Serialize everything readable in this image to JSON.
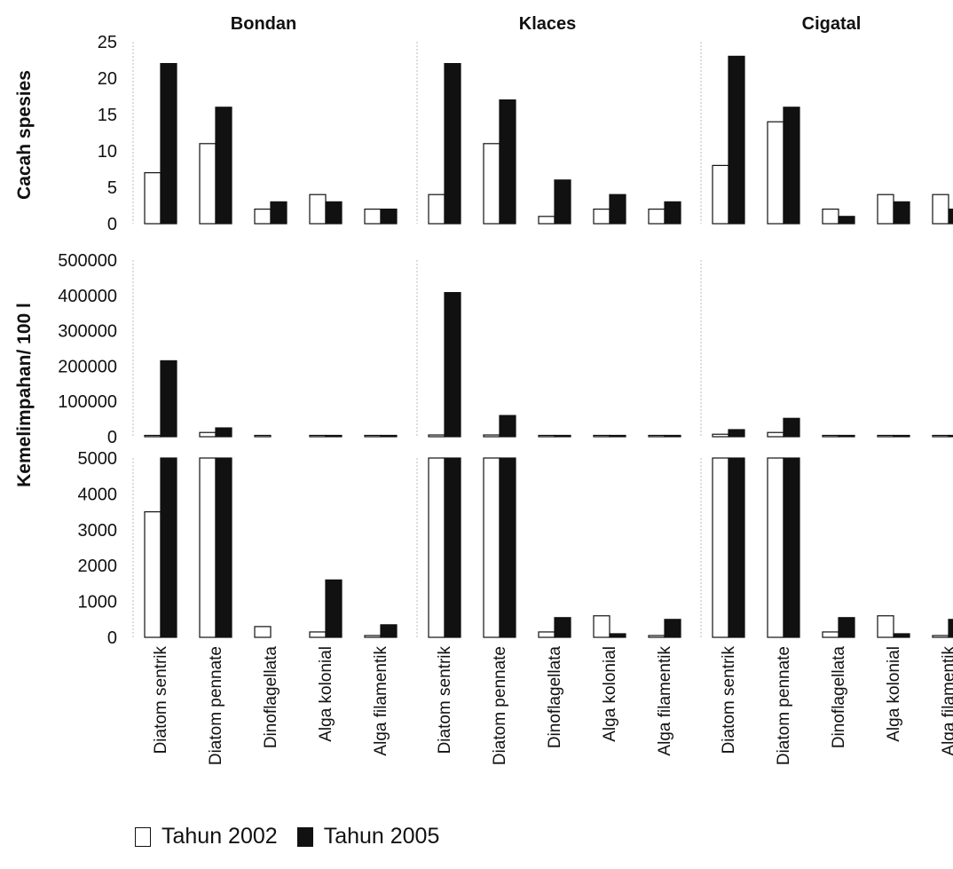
{
  "chart_data": {
    "type": "bar",
    "facets": [
      "Bondan",
      "Klaces",
      "Cigatal"
    ],
    "categories": [
      "Diatom sentrik",
      "Diatom pennate",
      "Dinoflagellata",
      "Alga kolonial",
      "Alga filamentik"
    ],
    "legend": [
      "Tahun 2002",
      "Tahun 2005"
    ],
    "colors": {
      "Tahun 2002": "#ffffff",
      "Tahun 2005": "#111111"
    },
    "panels": [
      {
        "ylabel": "Cacah spesies",
        "ylim": [
          0,
          25
        ],
        "yticks": [
          "0",
          "5",
          "10",
          "15",
          "20",
          "25"
        ],
        "tick_values": [
          0,
          5,
          10,
          15,
          20,
          25
        ],
        "data": {
          "Bondan": {
            "Tahun 2002": [
              7,
              11,
              2,
              4,
              2
            ],
            "Tahun 2005": [
              22,
              16,
              3,
              3,
              2
            ]
          },
          "Klaces": {
            "Tahun 2002": [
              4,
              11,
              1,
              2,
              2
            ],
            "Tahun 2005": [
              22,
              17,
              6,
              4,
              3
            ]
          },
          "Cigatal": {
            "Tahun 2002": [
              8,
              14,
              2,
              4,
              4
            ],
            "Tahun 2005": [
              23,
              16,
              1,
              3,
              2
            ]
          }
        }
      },
      {
        "ylabel": "Kemelimpahan/ 100 l",
        "ylim": [
          0,
          500000
        ],
        "yticks": [
          "0",
          "100000",
          "200000",
          "300000",
          "400000",
          "500000"
        ],
        "tick_values": [
          0,
          100000,
          200000,
          300000,
          400000,
          500000
        ],
        "data": {
          "Bondan": {
            "Tahun 2002": [
              3500,
              12000,
              300,
              150,
              50
            ],
            "Tahun 2005": [
              215000,
              25000,
              0,
              1600,
              350
            ]
          },
          "Klaces": {
            "Tahun 2002": [
              5000,
              5000,
              150,
              600,
              50
            ],
            "Tahun 2005": [
              408000,
              60000,
              550,
              100,
              500
            ]
          },
          "Cigatal": {
            "Tahun 2002": [
              7000,
              12000,
              150,
              600,
              50
            ],
            "Tahun 2005": [
              20000,
              52000,
              550,
              100,
              500
            ]
          }
        }
      },
      {
        "ylim": [
          0,
          5000
        ],
        "yticks": [
          "0",
          "1000",
          "2000",
          "3000",
          "4000",
          "5000"
        ],
        "tick_values": [
          0,
          1000,
          2000,
          3000,
          4000,
          5000
        ],
        "clip_top": true,
        "data": {
          "Bondan": {
            "Tahun 2002": [
              3500,
              12000,
              300,
              150,
              50
            ],
            "Tahun 2005": [
              215000,
              25000,
              0,
              1600,
              350
            ]
          },
          "Klaces": {
            "Tahun 2002": [
              5000,
              5000,
              150,
              600,
              50
            ],
            "Tahun 2005": [
              408000,
              60000,
              550,
              100,
              500
            ]
          },
          "Cigatal": {
            "Tahun 2002": [
              7000,
              12000,
              150,
              600,
              50
            ],
            "Tahun 2005": [
              20000,
              52000,
              550,
              100,
              500
            ]
          }
        }
      }
    ],
    "grid": false
  }
}
